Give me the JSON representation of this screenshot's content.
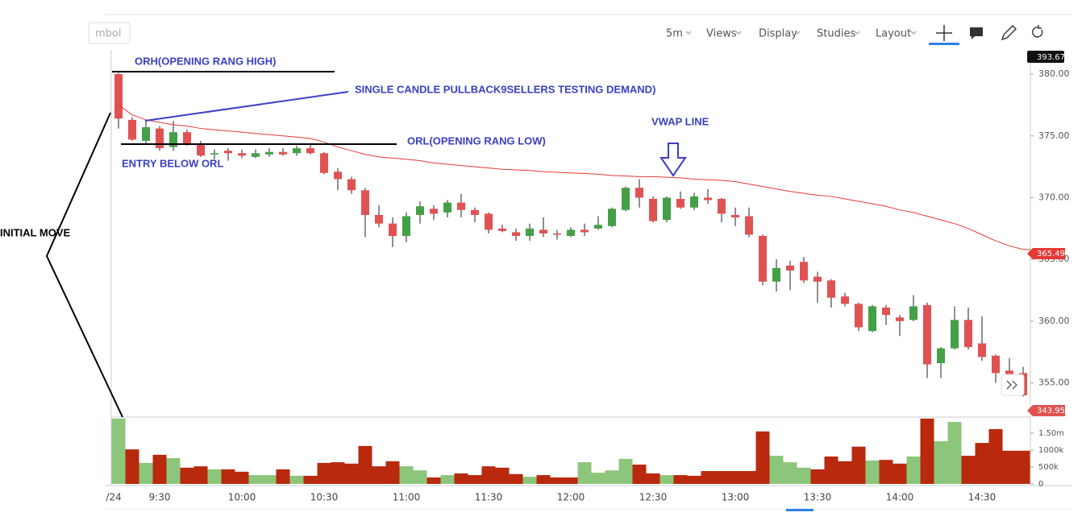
{
  "toolbar": {
    "symbol": "mbol",
    "items": [
      "5m",
      "Views",
      "Display",
      "Studies",
      "Layout"
    ]
  },
  "chart_data": {
    "type": "candlestick",
    "categories": [
      "/24",
      null,
      null,
      "9:30",
      null,
      null,
      null,
      null,
      null,
      "10:00",
      null,
      null,
      null,
      null,
      null,
      "10:30",
      null,
      null,
      null,
      null,
      null,
      "11:00",
      null,
      null,
      null,
      null,
      null,
      "11:30",
      null,
      null,
      null,
      null,
      null,
      "12:00",
      null,
      null,
      null,
      null,
      null,
      "12:30",
      null,
      null,
      null,
      null,
      null,
      "13:00",
      null,
      null,
      null,
      null,
      null,
      "13:30",
      null,
      null,
      null,
      null,
      null,
      "14:00",
      null,
      null,
      null,
      null,
      null,
      "14:30",
      null,
      null,
      null
    ],
    "open": [
      380.0,
      376.3,
      374.6,
      375.6,
      374.1,
      375.3,
      374.4,
      373.5,
      373.8,
      373.6,
      373.3,
      373.5,
      373.7,
      373.6,
      374.0,
      373.6,
      372.1,
      371.5,
      370.6,
      368.6,
      367.9,
      366.9,
      368.6,
      369.1,
      368.8,
      369.6,
      369.0,
      368.7,
      367.5,
      367.2,
      366.9,
      367.4,
      367.1,
      366.9,
      367.4,
      367.5,
      367.7,
      369.0,
      370.8,
      369.9,
      368.2,
      369.9,
      369.2,
      370.0,
      369.9,
      368.6,
      368.5,
      366.9,
      363.2,
      364.5,
      364.8,
      363.6,
      363.3,
      362.0,
      361.4,
      359.2,
      361.1,
      360.3,
      360.1,
      361.3,
      356.6,
      357.8,
      360.1,
      358.2,
      357.2,
      356.0,
      355.8
    ],
    "high": [
      380.1,
      376.5,
      376.2,
      375.8,
      376.2,
      375.5,
      374.6,
      373.9,
      374.0,
      373.9,
      373.9,
      374.0,
      374.0,
      374.2,
      374.3,
      373.7,
      372.4,
      371.7,
      370.8,
      369.4,
      368.4,
      368.8,
      369.7,
      369.4,
      369.8,
      370.3,
      369.2,
      368.8,
      367.8,
      367.5,
      367.9,
      368.4,
      367.4,
      367.6,
      367.9,
      368.5,
      369.2,
      370.9,
      371.5,
      370.1,
      370.1,
      370.5,
      370.4,
      370.7,
      370.0,
      369.2,
      369.2,
      367.0,
      365.0,
      364.9,
      365.2,
      364.0,
      363.4,
      362.3,
      361.5,
      361.3,
      361.3,
      360.5,
      362.1,
      361.5,
      357.9,
      361.2,
      361.1,
      360.4,
      357.3,
      357.0,
      356.3
    ],
    "low": [
      375.6,
      374.6,
      374.4,
      373.8,
      373.8,
      374.2,
      373.3,
      373.1,
      373.0,
      373.2,
      373.2,
      373.3,
      373.4,
      373.4,
      373.5,
      371.9,
      370.6,
      370.3,
      366.8,
      367.6,
      366.0,
      366.4,
      367.9,
      368.2,
      368.4,
      368.4,
      368.0,
      367.1,
      367.2,
      366.5,
      366.5,
      366.8,
      366.6,
      366.8,
      366.9,
      367.4,
      367.6,
      368.9,
      369.2,
      368.0,
      368.0,
      369.1,
      369.0,
      369.5,
      368.0,
      367.7,
      366.8,
      362.9,
      362.4,
      362.5,
      363.1,
      361.5,
      361.1,
      361.2,
      359.2,
      359.1,
      359.7,
      358.8,
      360.0,
      355.4,
      355.4,
      357.7,
      357.7,
      356.8,
      355.0,
      355.0,
      353.9
    ],
    "close": [
      376.4,
      374.7,
      375.7,
      374.0,
      375.3,
      374.4,
      373.4,
      373.6,
      373.6,
      373.4,
      373.6,
      373.7,
      373.5,
      374.0,
      373.6,
      372.0,
      371.5,
      370.6,
      368.6,
      367.9,
      366.9,
      368.5,
      369.3,
      368.7,
      369.6,
      369.0,
      368.6,
      367.4,
      367.3,
      366.9,
      367.5,
      367.1,
      367.0,
      367.4,
      367.2,
      367.8,
      369.1,
      370.8,
      370.0,
      368.1,
      370.0,
      369.2,
      370.1,
      369.8,
      368.7,
      368.4,
      367.0,
      363.2,
      364.3,
      364.1,
      363.3,
      363.2,
      361.9,
      361.4,
      359.5,
      361.2,
      360.5,
      360.0,
      361.2,
      356.5,
      357.8,
      360.1,
      357.9,
      357.1,
      355.8,
      355.6,
      354.0
    ],
    "up_color": "#43a047",
    "down_color": "#e05252",
    "vwap": {
      "color": "#e53935",
      "values": [
        377.5,
        376.7,
        376.3,
        376.1,
        375.9,
        375.8,
        375.6,
        375.5,
        375.4,
        375.3,
        375.2,
        375.1,
        375.0,
        374.9,
        374.8,
        374.5,
        374.1,
        373.8,
        373.5,
        373.3,
        373.2,
        373.1,
        373.0,
        372.8,
        372.7,
        372.6,
        372.5,
        372.4,
        372.3,
        372.25,
        372.2,
        372.1,
        372.05,
        372.0,
        371.95,
        371.9,
        371.8,
        371.75,
        371.7,
        371.7,
        371.65,
        371.6,
        371.5,
        371.45,
        371.4,
        371.3,
        371.1,
        370.9,
        370.7,
        370.5,
        370.35,
        370.2,
        370.1,
        369.9,
        369.7,
        369.5,
        369.3,
        369.0,
        368.8,
        368.5,
        368.2,
        367.9,
        367.5,
        367.0,
        366.5,
        366.1,
        365.8
      ]
    },
    "ylim": [
      352.3,
      381.96
    ],
    "yticks": [
      {
        "value": 355,
        "label": "355.00"
      },
      {
        "value": 360,
        "label": "360.00"
      },
      {
        "value": 365,
        "label": "365.00"
      },
      {
        "value": 370,
        "label": "370.00"
      },
      {
        "value": 375,
        "label": "375.00"
      },
      {
        "value": 380,
        "label": "380.00"
      }
    ],
    "price_labels": [
      393.67,
      365.49,
      343.95
    ],
    "volume": {
      "values": [
        1.93,
        1.02,
        0.62,
        0.86,
        0.76,
        0.48,
        0.52,
        0.43,
        0.43,
        0.36,
        0.26,
        0.26,
        0.43,
        0.24,
        0.24,
        0.62,
        0.64,
        0.6,
        1.12,
        0.52,
        0.67,
        0.52,
        0.4,
        0.19,
        0.26,
        0.31,
        0.26,
        0.52,
        0.48,
        0.29,
        0.21,
        0.26,
        0.19,
        0.19,
        0.64,
        0.33,
        0.4,
        0.74,
        0.57,
        0.31,
        0.26,
        0.26,
        0.24,
        0.38,
        0.38,
        0.38,
        0.38,
        1.55,
        0.83,
        0.64,
        0.48,
        0.43,
        0.81,
        0.67,
        1.1,
        0.69,
        0.71,
        0.6,
        0.81,
        1.93,
        1.26,
        1.83,
        0.83,
        1.21,
        1.62,
        0.98,
        0.98
      ],
      "colors": [
        "#8cc67a",
        "#b8290e",
        "#8cc67a",
        "#b8290e",
        "#8cc67a",
        "#b8290e",
        "#b8290e",
        "#8cc67a",
        "#b8290e",
        "#b8290e",
        "#8cc67a",
        "#8cc67a",
        "#b8290e",
        "#8cc67a",
        "#b8290e",
        "#b8290e",
        "#b8290e",
        "#b8290e",
        "#b8290e",
        "#b8290e",
        "#b8290e",
        "#8cc67a",
        "#8cc67a",
        "#b8290e",
        "#8cc67a",
        "#b8290e",
        "#b8290e",
        "#b8290e",
        "#b8290e",
        "#b8290e",
        "#8cc67a",
        "#b8290e",
        "#b8290e",
        "#b8290e",
        "#8cc67a",
        "#8cc67a",
        "#8cc67a",
        "#8cc67a",
        "#b8290e",
        "#b8290e",
        "#8cc67a",
        "#b8290e",
        "#b8290e",
        "#b8290e",
        "#b8290e",
        "#b8290e",
        "#b8290e",
        "#b8290e",
        "#8cc67a",
        "#8cc67a",
        "#8cc67a",
        "#b8290e",
        "#b8290e",
        "#b8290e",
        "#b8290e",
        "#8cc67a",
        "#b8290e",
        "#b8290e",
        "#8cc67a",
        "#b8290e",
        "#8cc67a",
        "#8cc67a",
        "#b8290e",
        "#b8290e",
        "#b8290e",
        "#b8290e",
        "#b8290e"
      ],
      "ylim": [
        0,
        1.95
      ],
      "yticks": [
        0,
        {
          "value": 0.5,
          "label": "500k"
        },
        {
          "value": 1.0,
          "label": "1000k"
        },
        {
          "value": 1.5,
          "label": "1.50m"
        }
      ]
    },
    "annotations": [
      "ORH(OPENING RANG HIGH)",
      "SINGLE CANDLE PULLBACK9SELLERS TESTING DEMAND)",
      "VWAP LINE",
      "ORL(OPENING RANG LOW)",
      "ENTRY BELOW ORL",
      "INITIAL MOVE"
    ]
  }
}
